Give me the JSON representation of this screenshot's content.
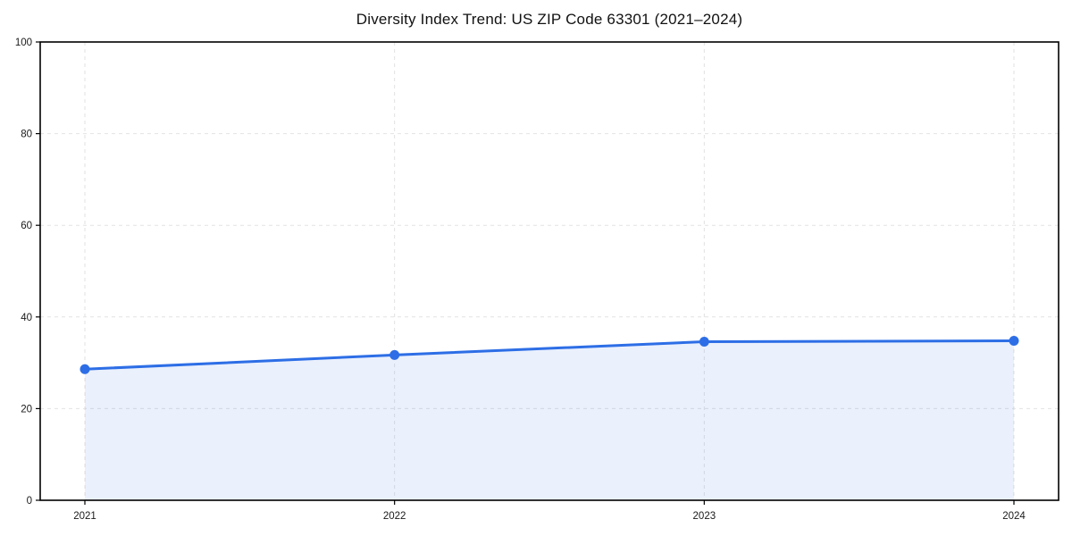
{
  "chart_data": {
    "type": "line",
    "title": "Diversity Index Trend: US ZIP Code 63301 (2021–2024)",
    "categories": [
      "2021",
      "2022",
      "2023",
      "2024"
    ],
    "values": [
      28.6,
      31.7,
      34.6,
      34.8
    ],
    "series": [
      {
        "name": "Diversity Index",
        "values": [
          28.6,
          31.7,
          34.6,
          34.8
        ]
      }
    ],
    "xlabel": "",
    "ylabel": "",
    "ylim": [
      0,
      100
    ],
    "yticks": [
      0,
      20,
      40,
      60,
      80,
      100
    ],
    "grid": "dashed, both axes",
    "legend": "none",
    "area_fill": true,
    "colors": {
      "line": "#2d6ee6",
      "marker": "#2d6ee6",
      "fill_rgba": "rgba(45,110,230,0.10)",
      "grid": "#e2e2e2",
      "spine": "#000000",
      "tick_label": "#1a1a1a",
      "title": "#111111",
      "background": "#ffffff"
    }
  }
}
